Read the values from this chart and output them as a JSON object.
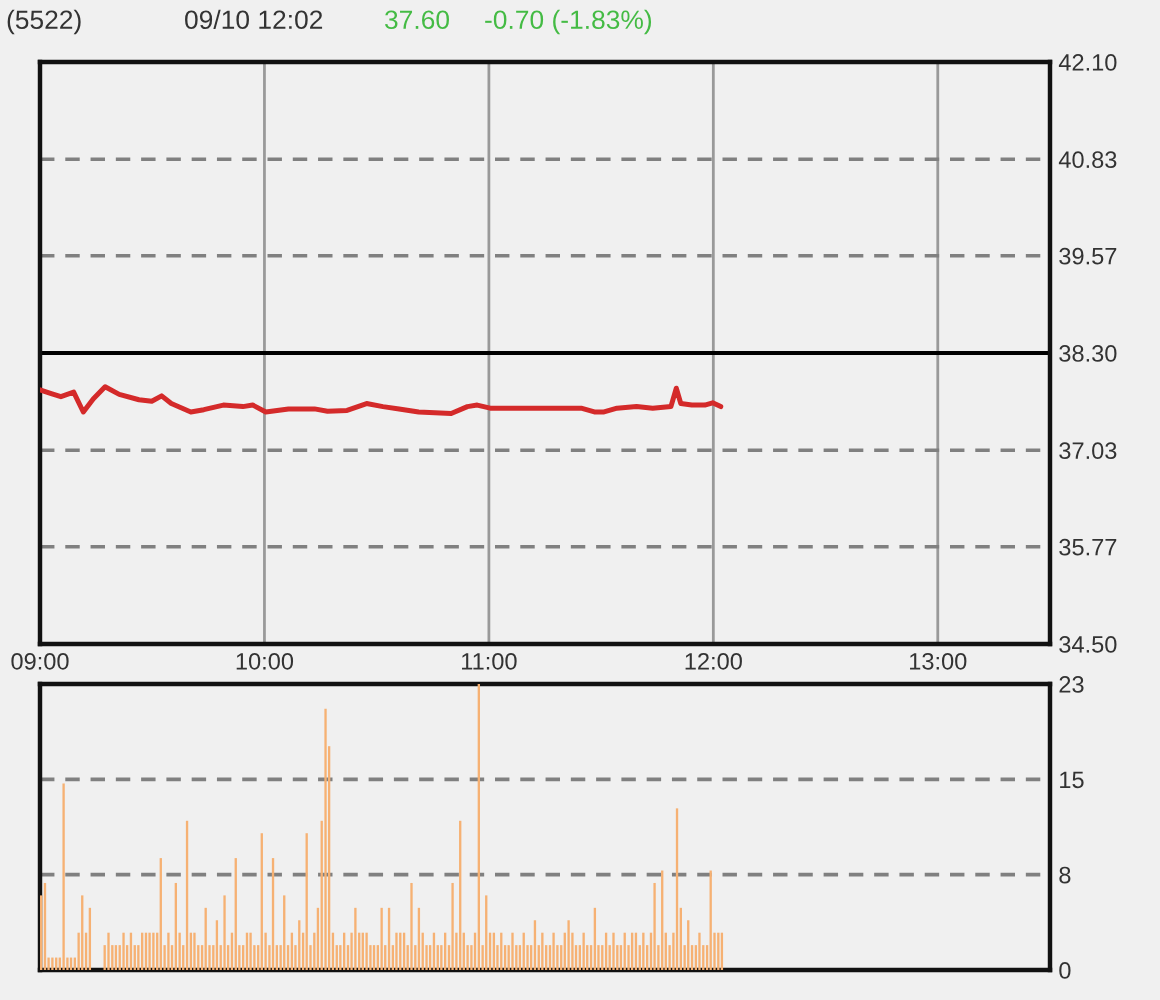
{
  "chart_data": [
    {
      "type": "line",
      "title": "(5522)",
      "annotations": [
        "09/10 12:02",
        "37.60",
        "-0.70 (-1.83%)"
      ],
      "x": [
        9.0,
        9.05,
        9.093,
        9.15,
        9.193,
        9.237,
        9.29,
        9.353,
        9.441,
        9.498,
        9.542,
        9.585,
        9.672,
        9.73,
        9.817,
        9.904,
        9.948,
        10.006,
        10.107,
        10.223,
        10.281,
        10.368,
        10.455,
        10.528,
        10.6,
        10.687,
        10.832,
        10.904,
        10.948,
        11.006,
        11.237,
        11.411,
        11.47,
        11.513,
        11.571,
        11.658,
        11.73,
        11.811,
        11.835,
        11.855,
        11.904,
        11.962,
        11.997,
        12.033
      ],
      "values": [
        37.82,
        37.77,
        37.73,
        37.79,
        37.53,
        37.7,
        37.86,
        37.76,
        37.69,
        37.67,
        37.74,
        37.64,
        37.53,
        37.56,
        37.62,
        37.6,
        37.62,
        37.53,
        37.57,
        37.57,
        37.54,
        37.55,
        37.64,
        37.6,
        37.57,
        37.53,
        37.51,
        37.6,
        37.62,
        37.58,
        37.58,
        37.58,
        37.53,
        37.53,
        37.58,
        37.6,
        37.58,
        37.6,
        37.84,
        37.64,
        37.62,
        37.62,
        37.65,
        37.6
      ],
      "color": "#d42a2a",
      "xlim": [
        9,
        13.5
      ],
      "xticks": [
        {
          "value": 9,
          "label": "09:00"
        },
        {
          "value": 10,
          "label": "10:00"
        },
        {
          "value": 11,
          "label": "11:00"
        },
        {
          "value": 12,
          "label": "12:00"
        },
        {
          "value": 13,
          "label": "13:00"
        }
      ],
      "ylim": [
        34.5,
        42.1
      ],
      "yticks": [
        {
          "value": 34.5,
          "label": "34.50"
        },
        {
          "value": 35.77,
          "label": "35.77"
        },
        {
          "value": 37.03,
          "label": "37.03"
        },
        {
          "value": 38.3,
          "label": "38.30"
        },
        {
          "value": 39.57,
          "label": "39.57"
        },
        {
          "value": 40.83,
          "label": "40.83"
        },
        {
          "value": 42.1,
          "label": "42.10"
        }
      ],
      "grid": true,
      "ref_lines": [
        {
          "axis": "y",
          "value": 38.3,
          "color": "#000000",
          "line_style": "solid"
        }
      ]
    },
    {
      "type": "bar",
      "x": [
        9,
        9.017,
        9.033,
        9.05,
        9.067,
        9.083,
        9.1,
        9.117,
        9.133,
        9.15,
        9.167,
        9.183,
        9.2,
        9.217,
        9.233,
        9.25,
        9.267,
        9.283,
        9.3,
        9.317,
        9.333,
        9.35,
        9.367,
        9.383,
        9.4,
        9.417,
        9.433,
        9.45,
        9.467,
        9.483,
        9.5,
        9.517,
        9.533,
        9.55,
        9.567,
        9.583,
        9.6,
        9.617,
        9.633,
        9.65,
        9.667,
        9.683,
        9.7,
        9.717,
        9.733,
        9.75,
        9.767,
        9.783,
        9.8,
        9.817,
        9.833,
        9.85,
        9.867,
        9.883,
        9.9,
        9.917,
        9.933,
        9.95,
        9.967,
        9.983,
        10,
        10.017,
        10.033,
        10.05,
        10.067,
        10.083,
        10.1,
        10.117,
        10.133,
        10.15,
        10.167,
        10.183,
        10.2,
        10.217,
        10.233,
        10.25,
        10.267,
        10.283,
        10.3,
        10.317,
        10.333,
        10.35,
        10.367,
        10.383,
        10.4,
        10.417,
        10.433,
        10.45,
        10.467,
        10.483,
        10.5,
        10.517,
        10.533,
        10.55,
        10.567,
        10.583,
        10.6,
        10.617,
        10.633,
        10.65,
        10.667,
        10.683,
        10.7,
        10.717,
        10.733,
        10.75,
        10.767,
        10.783,
        10.8,
        10.817,
        10.833,
        10.85,
        10.867,
        10.883,
        10.9,
        10.917,
        10.933,
        10.95,
        10.967,
        10.983,
        11,
        11.017,
        11.033,
        11.05,
        11.067,
        11.083,
        11.1,
        11.117,
        11.133,
        11.15,
        11.167,
        11.183,
        11.2,
        11.217,
        11.233,
        11.25,
        11.267,
        11.283,
        11.3,
        11.317,
        11.333,
        11.35,
        11.367,
        11.383,
        11.4,
        11.417,
        11.433,
        11.45,
        11.467,
        11.483,
        11.5,
        11.517,
        11.533,
        11.55,
        11.567,
        11.583,
        11.6,
        11.617,
        11.633,
        11.65,
        11.667,
        11.683,
        11.7,
        11.717,
        11.733,
        11.75,
        11.767,
        11.783,
        11.8,
        11.817,
        11.833,
        11.85,
        11.867,
        11.883,
        11.9,
        11.917,
        11.933,
        11.95,
        11.967,
        11.983,
        12,
        12.017,
        12.033
      ],
      "values": [
        6,
        7,
        1,
        1,
        1,
        1,
        15,
        1,
        1,
        1,
        3,
        6,
        3,
        5,
        null,
        null,
        null,
        2,
        3,
        2,
        2,
        2,
        3,
        2,
        3,
        2,
        2,
        3,
        3,
        3,
        3,
        3,
        9,
        2,
        3,
        2,
        7,
        3,
        2,
        12,
        3,
        3,
        2,
        2,
        5,
        2,
        2,
        4,
        2,
        6,
        2,
        3,
        9,
        2,
        2,
        3,
        3,
        2,
        2,
        11,
        3,
        2,
        9,
        2,
        2,
        6,
        2,
        3,
        2,
        4,
        3,
        11,
        2,
        3,
        5,
        12,
        21,
        18,
        3,
        2,
        2,
        3,
        2,
        3,
        5,
        3,
        3,
        3,
        2,
        2,
        2,
        5,
        2,
        5,
        2,
        3,
        3,
        3,
        2,
        7,
        2,
        5,
        3,
        2,
        2,
        3,
        2,
        2,
        3,
        2,
        7,
        3,
        12,
        3,
        2,
        2,
        3,
        23,
        2,
        6,
        3,
        3,
        2,
        3,
        2,
        2,
        3,
        2,
        2,
        3,
        2,
        2,
        4,
        2,
        3,
        2,
        2,
        3,
        2,
        2,
        3,
        4,
        3,
        2,
        2,
        3,
        2,
        2,
        5,
        2,
        2,
        3,
        2,
        3,
        2,
        2,
        3,
        2,
        3,
        3,
        2,
        3,
        2,
        3,
        7,
        2,
        8,
        3,
        2,
        3,
        13,
        5,
        2,
        4,
        2,
        2,
        3,
        2,
        2,
        8,
        3,
        3,
        3
      ],
      "color": "#f6b173",
      "xlim": [
        9,
        13.5
      ],
      "ylim": [
        0,
        23
      ],
      "yticks": [
        0,
        {
          "value": 7.67,
          "label": "8"
        },
        {
          "value": 15.33,
          "label": "15"
        },
        23
      ],
      "grid": "y",
      "tick_labels": "y"
    }
  ]
}
